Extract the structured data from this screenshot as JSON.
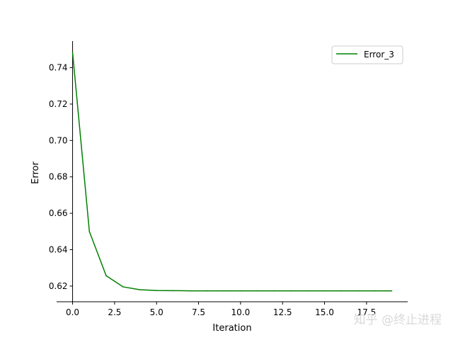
{
  "chart_data": {
    "type": "line",
    "xlabel": "Iteration",
    "ylabel": "Error",
    "xlim": [
      -0.95,
      19.95
    ],
    "ylim": [
      0.6114,
      0.7546
    ],
    "xticks": [
      0.0,
      2.5,
      5.0,
      7.5,
      10.0,
      12.5,
      15.0,
      17.5
    ],
    "xtick_labels": [
      "0.0",
      "2.5",
      "5.0",
      "7.5",
      "10.0",
      "12.5",
      "15.0",
      "17.5"
    ],
    "yticks": [
      0.62,
      0.64,
      0.66,
      0.68,
      0.7,
      0.72,
      0.74
    ],
    "ytick_labels": [
      "0.62",
      "0.64",
      "0.66",
      "0.68",
      "0.70",
      "0.72",
      "0.74"
    ],
    "grid": false,
    "legend_position": "top-right",
    "series": [
      {
        "name": "Error_3",
        "color": "#008000",
        "x": [
          0,
          1,
          2,
          3,
          4,
          5,
          6,
          7,
          8,
          9,
          10,
          11,
          12,
          13,
          14,
          15,
          16,
          17,
          18,
          19
        ],
        "y": [
          0.7483,
          0.65,
          0.6257,
          0.6196,
          0.618,
          0.6176,
          0.6175,
          0.6174,
          0.6174,
          0.6174,
          0.6174,
          0.6174,
          0.6174,
          0.6174,
          0.6174,
          0.6174,
          0.6174,
          0.6174,
          0.6174,
          0.6174
        ]
      }
    ]
  },
  "watermark": "知乎 @终止进程"
}
